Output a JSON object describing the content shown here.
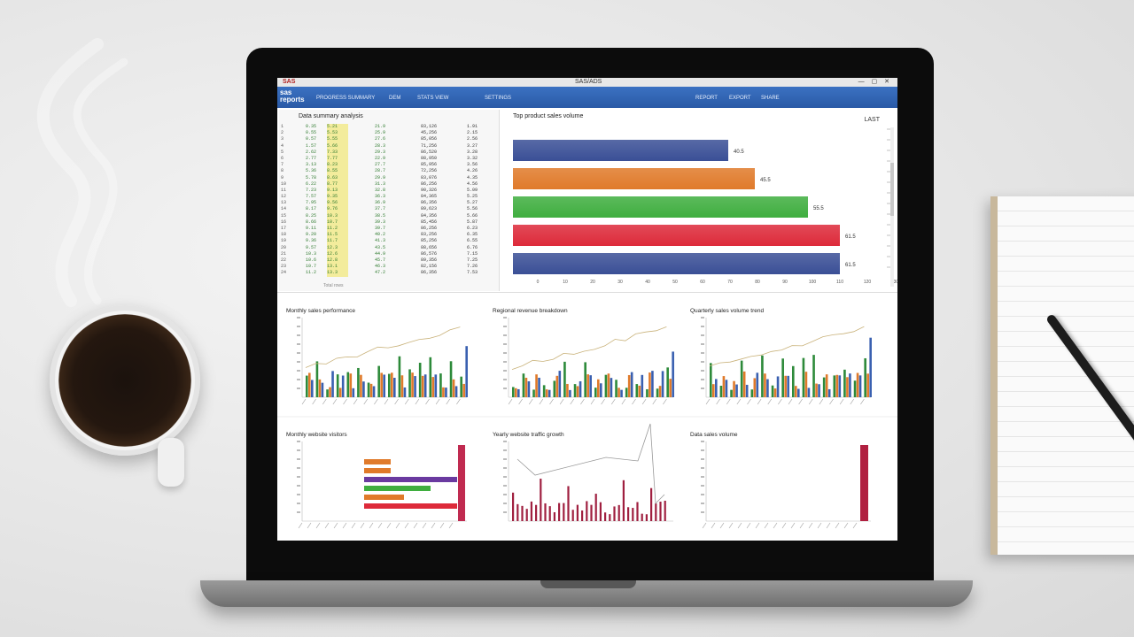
{
  "window": {
    "logo": "SAS",
    "title": "SAS/ADS",
    "controls": "— ▢ ✕"
  },
  "ribbon": {
    "brand": "sas\nreports",
    "menu_items": [
      "PROGRESS SUMMARY",
      "DEM",
      "STATS VIEW",
      "SETTINGS"
    ],
    "right_items": [
      "REPORT",
      "EXPORT",
      "SHARE"
    ]
  },
  "table": {
    "title": "Data summary analysis",
    "rows": [
      [
        "1",
        "0.35",
        "5.21",
        "21.9",
        "83,126",
        "1.91"
      ],
      [
        "2",
        "0.55",
        "5.53",
        "25.9",
        "45,256",
        "2.15"
      ],
      [
        "3",
        "0.57",
        "5.55",
        "27.6",
        "85,056",
        "2.56"
      ],
      [
        "4",
        "1.57",
        "5.66",
        "28.3",
        "71,256",
        "3.27"
      ],
      [
        "5",
        "2.62",
        "7.33",
        "29.3",
        "86,520",
        "3.28"
      ],
      [
        "6",
        "2.77",
        "7.77",
        "22.9",
        "88,950",
        "3.32"
      ],
      [
        "7",
        "3.13",
        "8.23",
        "27.7",
        "85,956",
        "3.56"
      ],
      [
        "8",
        "5.36",
        "8.55",
        "28.7",
        "72,256",
        "4.26"
      ],
      [
        "9",
        "5.78",
        "8.63",
        "29.9",
        "83,076",
        "4.35"
      ],
      [
        "10",
        "6.22",
        "8.77",
        "31.3",
        "86,256",
        "4.56"
      ],
      [
        "11",
        "7.23",
        "9.13",
        "32.8",
        "90,326",
        "5.09"
      ],
      [
        "12",
        "7.57",
        "9.35",
        "36.3",
        "84,365",
        "5.25"
      ],
      [
        "13",
        "7.95",
        "9.56",
        "36.9",
        "86,356",
        "5.27"
      ],
      [
        "14",
        "8.17",
        "9.76",
        "37.7",
        "89,623",
        "5.56"
      ],
      [
        "15",
        "8.25",
        "10.3",
        "38.5",
        "84,356",
        "5.66"
      ],
      [
        "16",
        "8.66",
        "10.7",
        "39.3",
        "85,456",
        "5.87"
      ],
      [
        "17",
        "9.11",
        "11.2",
        "39.7",
        "86,256",
        "6.23"
      ],
      [
        "18",
        "9.20",
        "11.5",
        "40.2",
        "83,256",
        "6.35"
      ],
      [
        "19",
        "9.36",
        "11.7",
        "41.3",
        "85,256",
        "6.55"
      ],
      [
        "20",
        "9.57",
        "12.3",
        "43.5",
        "88,656",
        "6.76"
      ],
      [
        "21",
        "10.3",
        "12.6",
        "44.9",
        "86,576",
        "7.15"
      ],
      [
        "22",
        "10.6",
        "12.8",
        "45.7",
        "89,356",
        "7.25"
      ],
      [
        "23",
        "10.7",
        "13.1",
        "46.3",
        "82,156",
        "7.26"
      ],
      [
        "24",
        "11.2",
        "13.3",
        "47.2",
        "86,356",
        "7.53"
      ]
    ],
    "footer": "Total rows"
  },
  "hbar": {
    "title": "Top product sales volume",
    "right_label": "LAST",
    "labels": [
      "40.5",
      "45.5",
      "55.5",
      "61.5",
      "61.5"
    ],
    "colors": [
      "#3a4f96",
      "#e07a2a",
      "#3fae3f",
      "#dd2a3a",
      "#3a4f96"
    ],
    "values": [
      40.5,
      45.5,
      55.5,
      61.5,
      61.5
    ],
    "xticks": [
      "0",
      "10",
      "20",
      "30",
      "40",
      "50",
      "60",
      "70",
      "80",
      "90",
      "100",
      "110",
      "120",
      "130"
    ],
    "xmax": 65
  },
  "mini_charts": [
    {
      "title": "Monthly sales performance",
      "kind": "bar-line",
      "palette": [
        "#2d8a3a",
        "#e07a2a",
        "#3a60b0"
      ]
    },
    {
      "title": "Regional revenue breakdown",
      "kind": "bar-line",
      "palette": [
        "#2d8a3a",
        "#e07a2a",
        "#3a60b0"
      ]
    },
    {
      "title": "Quarterly sales volume trend",
      "kind": "bar-line",
      "palette": [
        "#2d8a3a",
        "#e07a2a",
        "#3a60b0"
      ]
    },
    {
      "title": "Monthly website visitors",
      "kind": "hbar-spike",
      "palette": [
        "#e07a2a",
        "#e07a2a",
        "#6a3aa0",
        "#3fae3f",
        "#e07a2a",
        "#dd2a3a"
      ]
    },
    {
      "title": "Yearly website traffic growth",
      "kind": "spikes",
      "palette": [
        "#a02040"
      ]
    },
    {
      "title": "Data sales volume",
      "kind": "single",
      "palette": [
        "#b02040"
      ]
    }
  ]
}
